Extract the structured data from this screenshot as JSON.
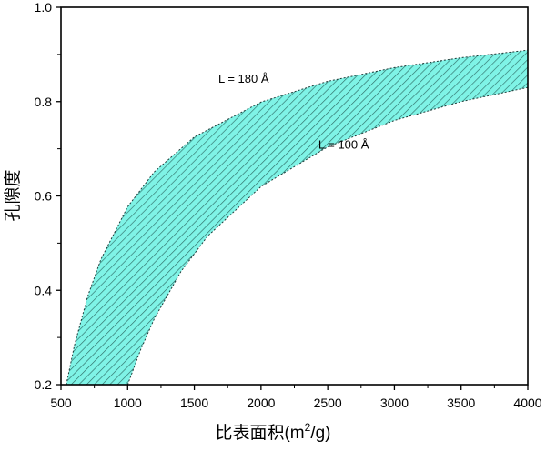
{
  "chart_data": {
    "type": "area",
    "xlabel": "比表面积(m²/g)",
    "xlabel_main": "比表面积(m",
    "xlabel_sup": "2",
    "xlabel_tail": "/g)",
    "ylabel": "孔隙度",
    "xlim": [
      500,
      4000
    ],
    "ylim": [
      0.2,
      1.0
    ],
    "x_ticks": [
      "500",
      "1000",
      "1500",
      "2000",
      "2500",
      "3000",
      "3500",
      "4000"
    ],
    "y_ticks": [
      "0.2",
      "0.4",
      "0.6",
      "0.8",
      "1.0"
    ],
    "grid": false,
    "fill_color": "#7ff3e6",
    "hatch_color": "#2f6f68",
    "series": [
      {
        "name": "L = 180 Å",
        "x": [
          540,
          600,
          700,
          800,
          1000,
          1200,
          1500,
          2000,
          2500,
          3000,
          3500,
          4000
        ],
        "y": [
          0.2,
          0.282,
          0.387,
          0.466,
          0.577,
          0.651,
          0.725,
          0.799,
          0.843,
          0.872,
          0.893,
          0.909
        ]
      },
      {
        "name": "L = 100 Å",
        "x": [
          1000,
          1100,
          1200,
          1400,
          1600,
          2000,
          2500,
          3000,
          3500,
          4000
        ],
        "y": [
          0.2,
          0.276,
          0.34,
          0.44,
          0.515,
          0.62,
          0.704,
          0.76,
          0.8,
          0.83
        ]
      }
    ],
    "annotations": [
      {
        "text": "L = 180 Å",
        "x": 1680,
        "y": 0.84
      },
      {
        "text": "L = 100 Å",
        "x": 2430,
        "y": 0.7
      }
    ]
  }
}
